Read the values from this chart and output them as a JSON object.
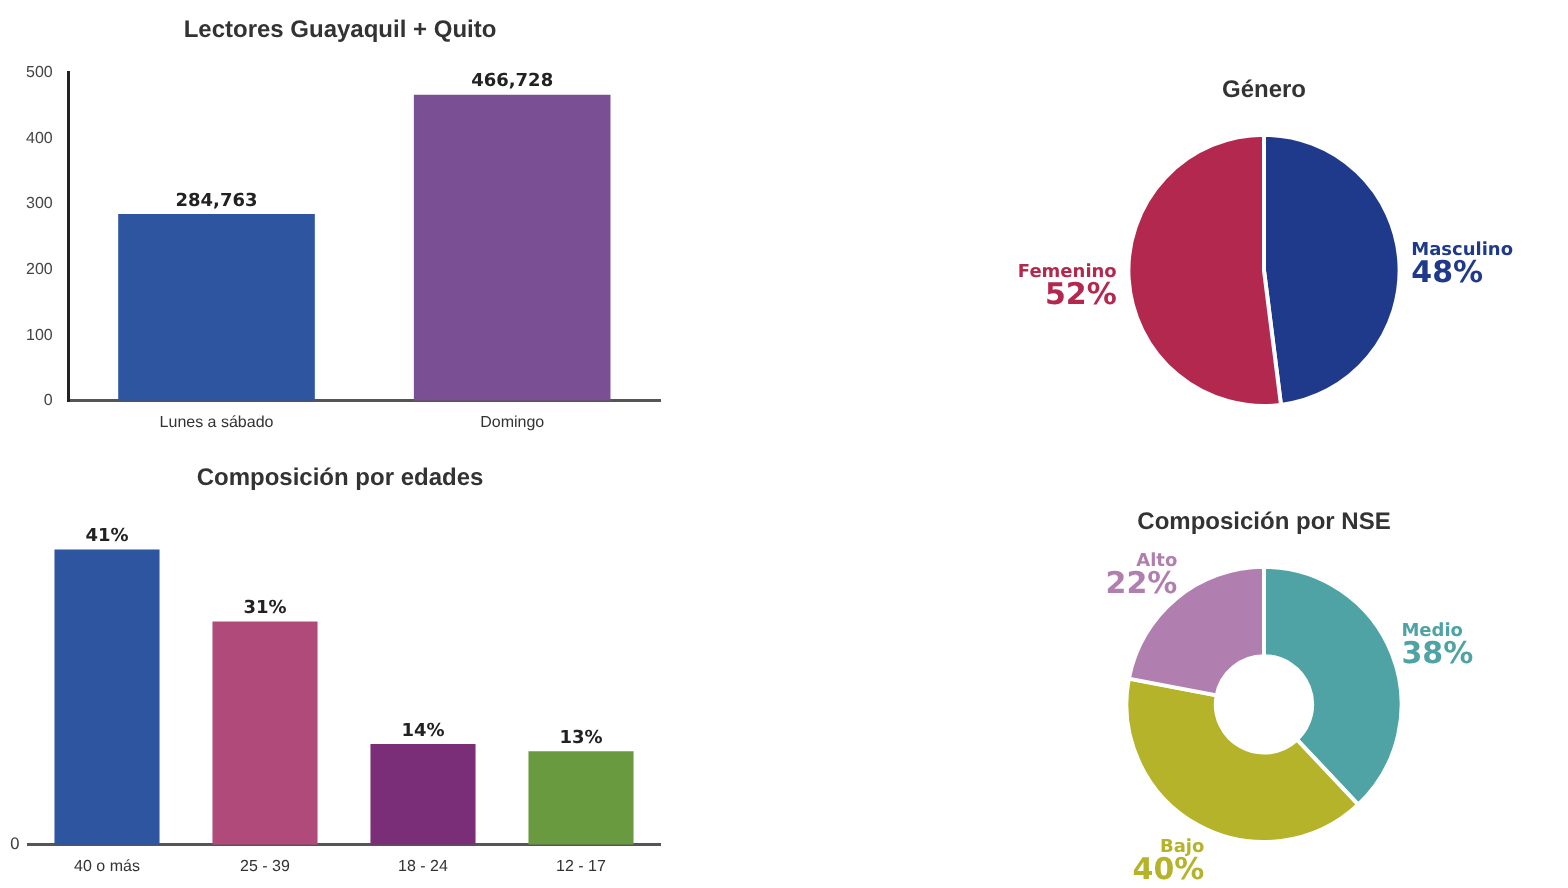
{
  "chart_data": [
    {
      "type": "bar",
      "title": "Lectores Guayaquil + Quito",
      "categories": [
        "Lunes a sábado",
        "Domingo"
      ],
      "values": [
        284.763,
        466.728
      ],
      "annotations": [
        {
          "text": "284,763",
          "x": "Lunes a sábado",
          "y": 284.763
        },
        {
          "text": "466,728",
          "x": "Domingo",
          "y": 466.728
        }
      ],
      "colors": [
        "#2d55a0",
        "#7a4f93"
      ],
      "ylim": [
        0,
        500
      ],
      "yticks": [
        0,
        100,
        200,
        300,
        400,
        500
      ],
      "grid": false,
      "legend": false
    },
    {
      "type": "bar",
      "title": "Composición por edades",
      "categories": [
        "40 o más",
        "25 - 39",
        "18 - 24",
        "12 - 17"
      ],
      "values": [
        41,
        31,
        14,
        13
      ],
      "value_labels": [
        "41%",
        "31%",
        "14%",
        "13%"
      ],
      "colors": [
        "#2d55a0",
        "#b04a7a",
        "#7a2e78",
        "#6a9a40"
      ],
      "annotations": [
        "0"
      ],
      "grid": false,
      "legend": false
    },
    {
      "type": "pie",
      "title": "Género",
      "categories": [
        "Masculino",
        "Femenino"
      ],
      "values": [
        48,
        52
      ],
      "value_labels": [
        "48%",
        "52%"
      ],
      "colors": [
        "#1f3a8a",
        "#b3284f"
      ],
      "legend": false
    },
    {
      "type": "donut",
      "title": "Composición por NSE",
      "categories": [
        "Medio",
        "Bajo",
        "Alto"
      ],
      "values": [
        38,
        40,
        22
      ],
      "value_labels": [
        "38%",
        "40%",
        "22%"
      ],
      "colors": [
        "#4fa3a5",
        "#b5b32a",
        "#b07fb0"
      ],
      "legend": false
    }
  ]
}
